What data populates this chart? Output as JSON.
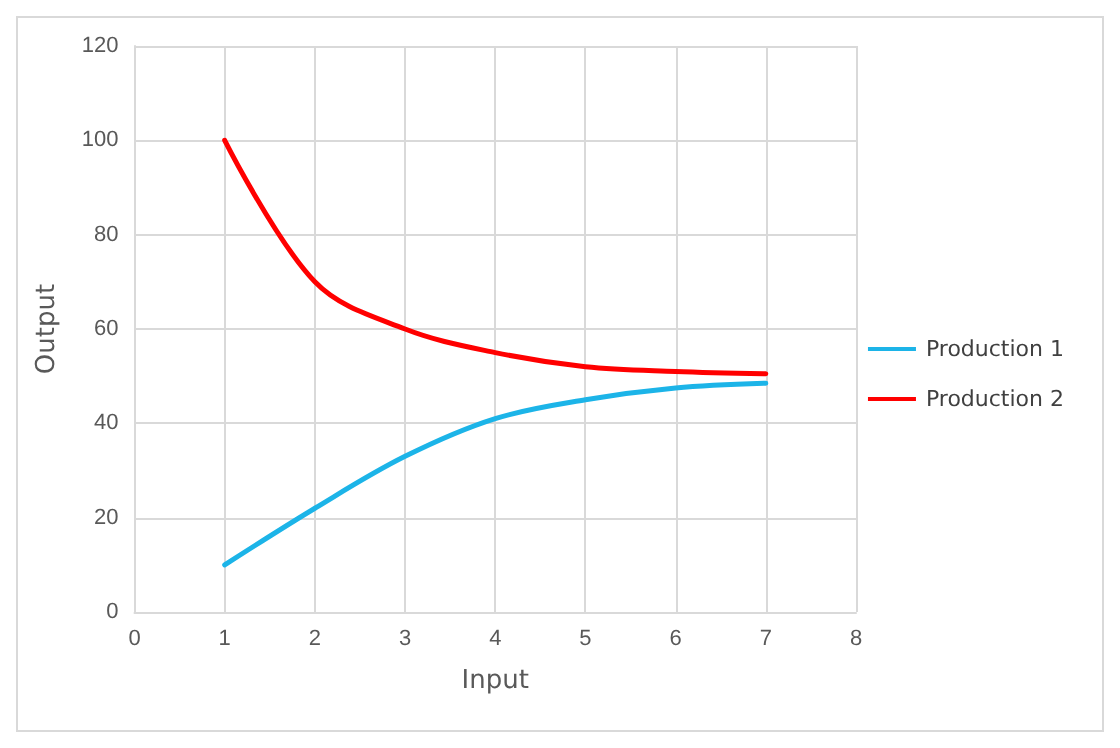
{
  "chart_data": {
    "type": "line",
    "xlabel": "Input",
    "ylabel": "Output",
    "x": [
      1,
      2,
      3,
      4,
      5,
      6,
      7
    ],
    "series": [
      {
        "name": "Production 1",
        "color": "#1cb4e8",
        "values": [
          10,
          22,
          33,
          41,
          45,
          47.5,
          48.5
        ]
      },
      {
        "name": "Production 2",
        "color": "#ff0000",
        "values": [
          100,
          70,
          60,
          55,
          52,
          51,
          50.5
        ]
      }
    ],
    "xlim": [
      0,
      8
    ],
    "xticks": [
      0,
      1,
      2,
      3,
      4,
      5,
      6,
      7,
      8
    ],
    "ylim": [
      0,
      120
    ],
    "yticks": [
      0,
      20,
      40,
      60,
      80,
      100,
      120
    ],
    "grid": true,
    "legend": "right",
    "marker": "none",
    "line_style": "solid"
  }
}
